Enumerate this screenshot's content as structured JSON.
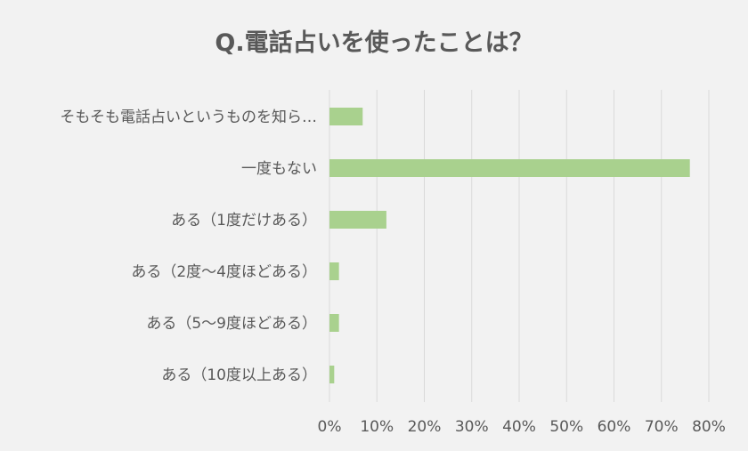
{
  "chart_data": {
    "type": "bar",
    "orientation": "horizontal",
    "title": "Q.電話占いを使ったことは？",
    "categories": [
      "そもそも電話占いというものを知ら…",
      "一度もない",
      "ある（1度だけある）",
      "ある（2度〜4度ほどある）",
      "ある（5〜9度ほどある）",
      "ある（10度以上ある）"
    ],
    "values": [
      7,
      76,
      12,
      2,
      2,
      1
    ],
    "xlim": [
      0,
      80
    ],
    "ticks": [
      "0%",
      "10%",
      "20%",
      "30%",
      "40%",
      "50%",
      "60%",
      "70%",
      "80%"
    ],
    "grid": true,
    "bar_color": "#a9d18e"
  }
}
